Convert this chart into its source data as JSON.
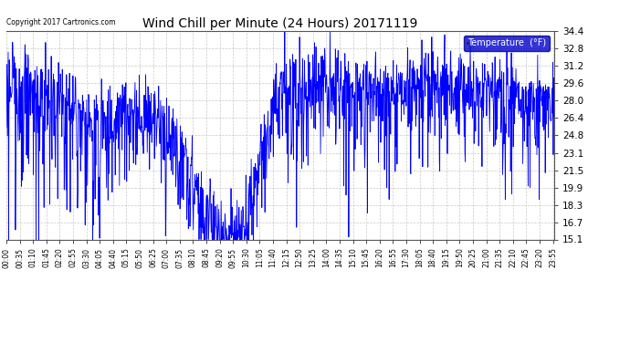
{
  "title": "Wind Chill per Minute (24 Hours) 20171119",
  "copyright_text": "Copyright 2017 Cartronics.com",
  "legend_label": "Temperature  (°F)",
  "legend_bg": "#0000cc",
  "legend_fg": "#ffffff",
  "line_color": "#0000ff",
  "background_color": "#ffffff",
  "grid_color": "#aaaaaa",
  "ymin": 15.1,
  "ymax": 34.4,
  "yticks": [
    15.1,
    16.7,
    18.3,
    19.9,
    21.5,
    23.1,
    24.8,
    26.4,
    28.0,
    29.6,
    31.2,
    32.8,
    34.4
  ],
  "x_tick_labels": [
    "00:00",
    "00:35",
    "01:10",
    "01:45",
    "02:20",
    "02:55",
    "03:30",
    "04:05",
    "04:40",
    "05:15",
    "05:50",
    "06:25",
    "07:00",
    "07:35",
    "08:10",
    "08:45",
    "09:20",
    "09:55",
    "10:30",
    "11:05",
    "11:40",
    "12:15",
    "12:50",
    "13:25",
    "14:00",
    "14:35",
    "15:10",
    "15:45",
    "16:20",
    "16:55",
    "17:30",
    "18:05",
    "18:40",
    "19:15",
    "19:50",
    "20:25",
    "21:00",
    "21:35",
    "22:10",
    "22:45",
    "23:20",
    "23:55"
  ],
  "num_points": 1440,
  "figwidth": 6.9,
  "figheight": 3.75,
  "dpi": 100
}
